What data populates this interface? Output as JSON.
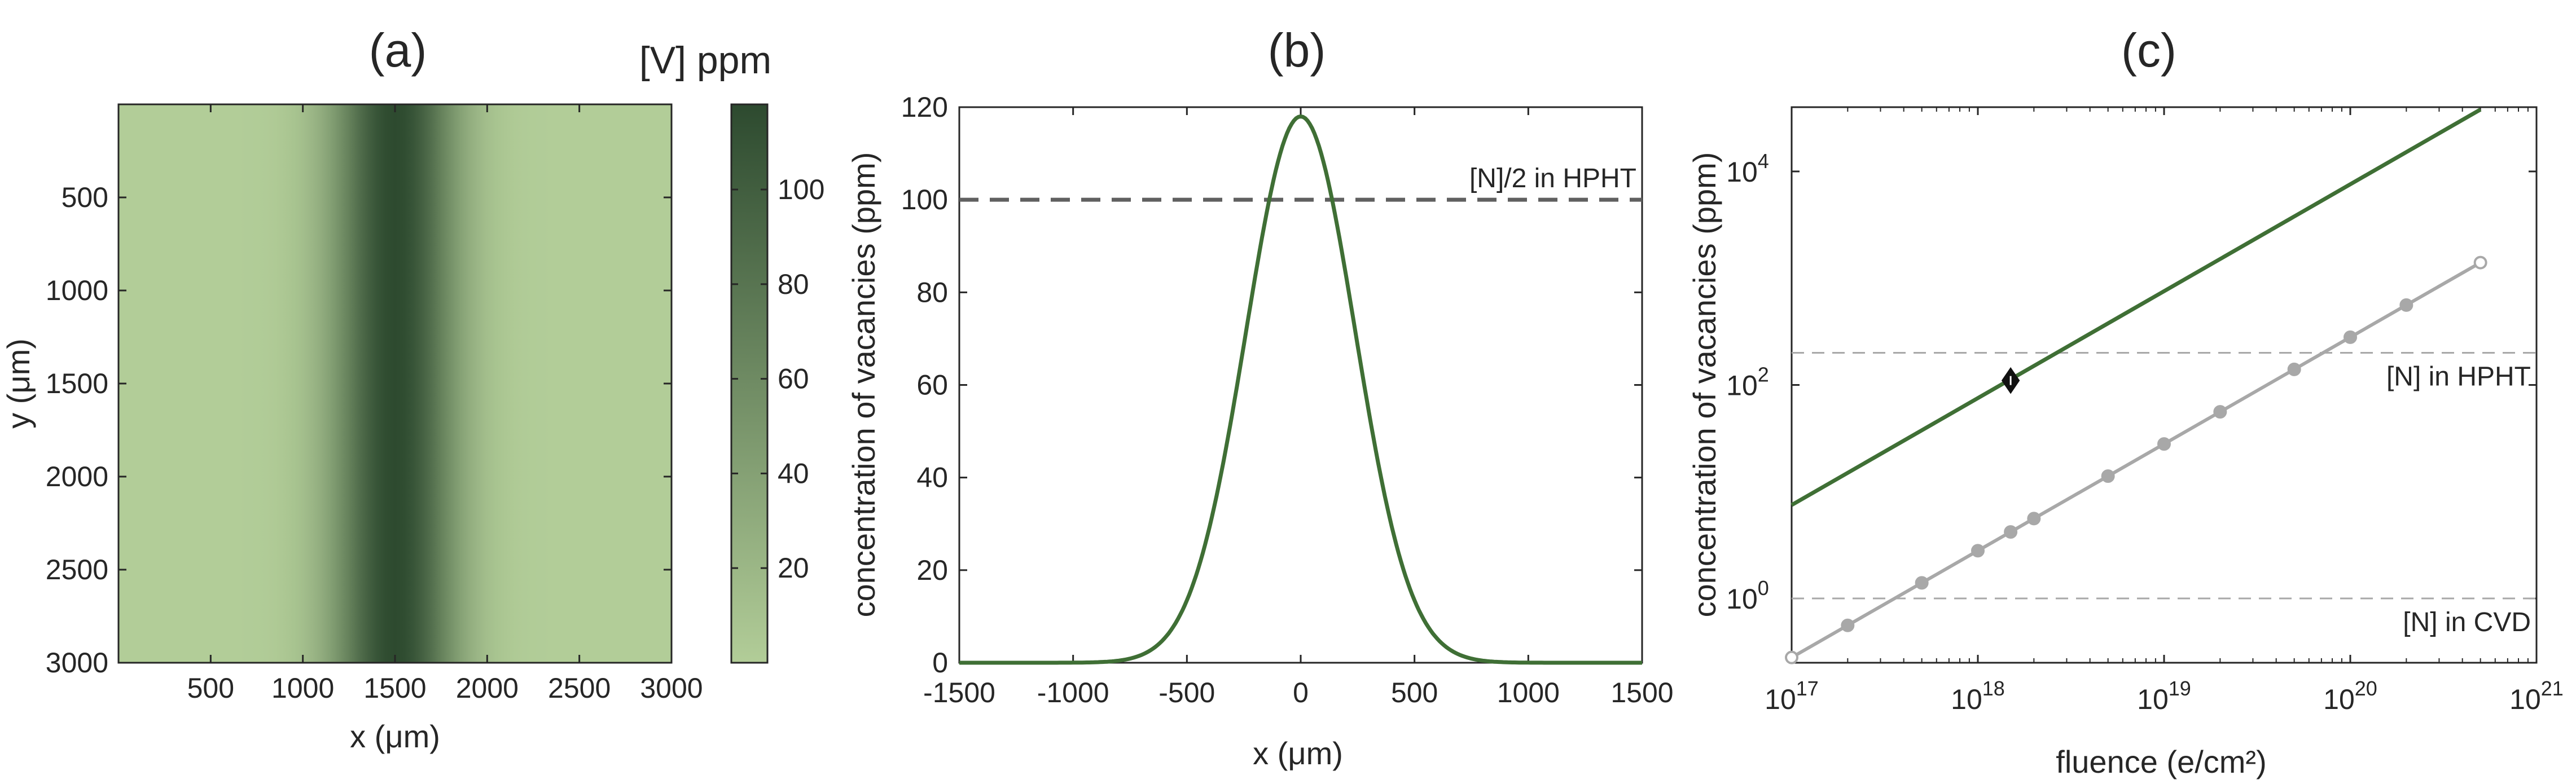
{
  "colors": {
    "dark_green": "#2d4a2f",
    "light_green": "#b2cd98",
    "line_green": "#3f6f35",
    "gray_line": "#a8a8a8",
    "dashed": "#606060",
    "axis": "#262626"
  },
  "chart_data": [
    {
      "type": "heatmap",
      "title": "(a)",
      "xlabel": "x (μm)",
      "ylabel": "y (μm)",
      "xlim": [
        0,
        3000
      ],
      "ylim": [
        3000,
        0
      ],
      "xticks": [
        500,
        1000,
        1500,
        2000,
        2500,
        3000
      ],
      "xtick_labels": [
        "500",
        "1000",
        "1500",
        "2000",
        "2500",
        "3000"
      ],
      "yticks": [
        500,
        1000,
        1500,
        2000,
        2500,
        3000
      ],
      "ytick_labels": [
        "500",
        "1000",
        "1500",
        "2000",
        "2500",
        "3000"
      ],
      "field": {
        "profile": "gaussian in x, uniform in y",
        "center_x": 1500,
        "sigma_x": 240,
        "peak": 118,
        "baseline": 0
      },
      "colorbar": {
        "title": "[V] ppm",
        "range": [
          0,
          118
        ],
        "ticks": [
          20,
          40,
          60,
          80,
          100
        ],
        "tick_labels": [
          "20",
          "40",
          "60",
          "80",
          "100"
        ],
        "colors": [
          "#b2cd98",
          "#2d4a2f"
        ]
      }
    },
    {
      "type": "line",
      "title": "(b)",
      "xlabel": "x (μm)",
      "ylabel": "concentration of vacancies (ppm)",
      "xlim": [
        -1500,
        1500
      ],
      "ylim": [
        0,
        120
      ],
      "xticks": [
        -1500,
        -1000,
        -500,
        0,
        500,
        1000,
        1500
      ],
      "xtick_labels": [
        "-1500",
        "-1000",
        "-500",
        "0",
        "500",
        "1000",
        "1500"
      ],
      "yticks": [
        0,
        20,
        40,
        60,
        80,
        100,
        120
      ],
      "ytick_labels": [
        "0",
        "20",
        "40",
        "60",
        "80",
        "100",
        "120"
      ],
      "series": [
        {
          "x": [
            -1500,
            -1200,
            -1000,
            -800,
            -600,
            -500,
            -400,
            -300,
            -200,
            -100,
            0,
            100,
            200,
            300,
            400,
            500,
            600,
            800,
            1000,
            1200,
            1500
          ],
          "y": [
            0,
            0.1,
            0.5,
            2.3,
            10,
            13,
            29.5,
            54,
            83,
            107,
            118,
            107,
            83,
            54,
            29.5,
            13,
            10,
            2.3,
            0.5,
            0.1,
            0
          ],
          "color": "#3f6f35"
        }
      ],
      "hlines": [
        {
          "y": 100,
          "label": "[N]/2 in HPHT",
          "style": "dashed"
        }
      ]
    },
    {
      "type": "line",
      "title": "(c)",
      "xlabel": "fluence (e/cm²)",
      "ylabel": "concentration of vacancies (ppm)",
      "xscale": "log",
      "yscale": "log",
      "xlim": [
        1e+17,
        1e+21
      ],
      "ylim": [
        0.25,
        40000
      ],
      "xticks": [
        1e+17,
        1e+18,
        1e+19,
        1e+20,
        1e+21
      ],
      "xtick_labels": [
        "10",
        "10",
        "10",
        "10",
        "10"
      ],
      "xtick_exponents": [
        "17",
        "18",
        "19",
        "20",
        "21"
      ],
      "yticks": [
        1,
        100,
        10000
      ],
      "ytick_labels": [
        "10",
        "10",
        "10"
      ],
      "ytick_exponents": [
        "0",
        "2",
        "4"
      ],
      "series": [
        {
          "x": [
            1e+17,
            5e+20
          ],
          "y": [
            7.5,
            38000
          ],
          "color": "#3f6f35",
          "markers": false
        },
        {
          "x": [
            1e+17,
            2e+17,
            5e+17,
            1e+18,
            1.5e+18,
            2e+18,
            5e+18,
            1e+19,
            2e+19,
            5e+19,
            1e+20,
            2e+20,
            5e+20
          ],
          "y": [
            0.28,
            0.56,
            1.4,
            2.8,
            4.2,
            5.6,
            14,
            28,
            56,
            140,
            280,
            560,
            1400
          ],
          "color": "#a8a8a8",
          "markers": true
        }
      ],
      "marker_point": {
        "x": 1.5e+18,
        "y": 110
      },
      "hlines": [
        {
          "y": 200,
          "label": "[N] in HPHT",
          "style": "dashed"
        },
        {
          "y": 1,
          "label": "[N] in CVD",
          "style": "dashed"
        }
      ]
    }
  ]
}
